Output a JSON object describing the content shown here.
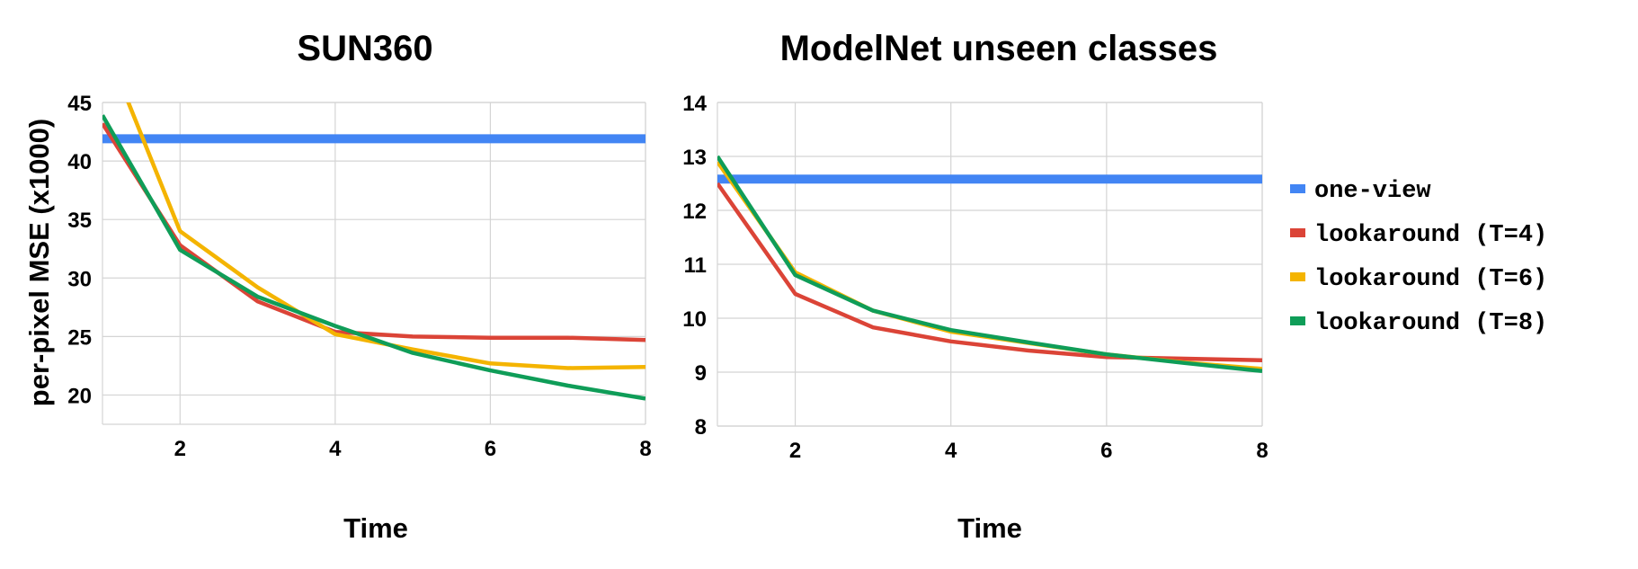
{
  "colors": {
    "one_view": "#4285f4",
    "lookaround_t4": "#db4437",
    "lookaround_t6": "#f4b400",
    "lookaround_t8": "#0f9d58"
  },
  "ylabel": "per-pixel MSE (x1000)",
  "legend": {
    "position": "right",
    "entries": [
      {
        "label": "one-view",
        "color": "#4285f4"
      },
      {
        "label": "lookaround (T=4)",
        "color": "#db4437"
      },
      {
        "label": "lookaround (T=6)",
        "color": "#f4b400"
      },
      {
        "label": "lookaround (T=8)",
        "color": "#0f9d58"
      }
    ]
  },
  "chart_data": [
    {
      "type": "line",
      "title": "SUN360",
      "xlabel": "Time",
      "ylabel": "per-pixel MSE (x1000)",
      "xlim": [
        1,
        8
      ],
      "ylim": [
        17.5,
        45
      ],
      "xticks": [
        2,
        4,
        6,
        8
      ],
      "yticks": [
        20,
        25,
        30,
        35,
        40,
        45
      ],
      "grid": true,
      "series": [
        {
          "name": "one-view",
          "color": "#4285f4",
          "x": [
            1,
            8
          ],
          "y": [
            41.9,
            41.9
          ]
        },
        {
          "name": "lookaround (T=4)",
          "color": "#db4437",
          "x": [
            1,
            2,
            3,
            4,
            5,
            6,
            7,
            8
          ],
          "y": [
            43.2,
            32.8,
            28.0,
            25.4,
            25.0,
            24.9,
            24.9,
            24.7
          ]
        },
        {
          "name": "lookaround (T=6)",
          "color": "#f4b400",
          "x": [
            1,
            2,
            3,
            4,
            5,
            6,
            7,
            8
          ],
          "y": [
            50.5,
            34.0,
            29.2,
            25.2,
            23.9,
            22.7,
            22.3,
            22.4
          ]
        },
        {
          "name": "lookaround (T=8)",
          "color": "#0f9d58",
          "x": [
            1,
            2,
            3,
            4,
            5,
            6,
            7,
            8
          ],
          "y": [
            43.9,
            32.4,
            28.4,
            25.9,
            23.6,
            22.1,
            20.8,
            19.7
          ]
        }
      ]
    },
    {
      "type": "line",
      "title": "ModelNet unseen classes",
      "xlabel": "Time",
      "ylabel": "",
      "xlim": [
        1,
        8
      ],
      "ylim": [
        8,
        14
      ],
      "xticks": [
        2,
        4,
        6,
        8
      ],
      "yticks": [
        8,
        9,
        10,
        11,
        12,
        13,
        14
      ],
      "grid": true,
      "series": [
        {
          "name": "one-view",
          "color": "#4285f4",
          "x": [
            1,
            8
          ],
          "y": [
            12.58,
            12.58
          ]
        },
        {
          "name": "lookaround (T=4)",
          "color": "#db4437",
          "x": [
            1,
            2,
            3,
            4,
            5,
            6,
            7,
            8
          ],
          "y": [
            12.5,
            10.45,
            9.83,
            9.57,
            9.4,
            9.28,
            9.25,
            9.22
          ]
        },
        {
          "name": "lookaround (T=6)",
          "color": "#f4b400",
          "x": [
            1,
            2,
            3,
            4,
            5,
            6,
            7,
            8
          ],
          "y": [
            12.9,
            10.85,
            10.14,
            9.75,
            9.54,
            9.33,
            9.18,
            9.06
          ]
        },
        {
          "name": "lookaround (T=8)",
          "color": "#0f9d58",
          "x": [
            1,
            2,
            3,
            4,
            5,
            6,
            7,
            8
          ],
          "y": [
            13.0,
            10.8,
            10.14,
            9.78,
            9.55,
            9.33,
            9.17,
            9.02
          ]
        }
      ]
    }
  ]
}
